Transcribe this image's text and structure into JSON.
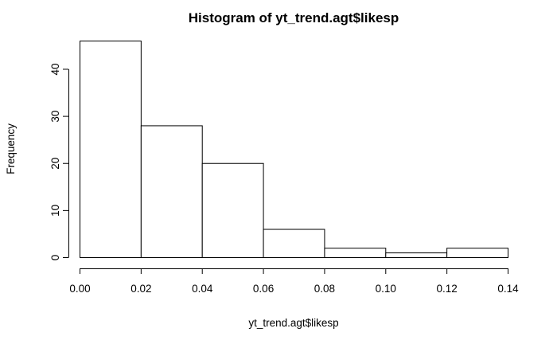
{
  "chart_data": {
    "type": "bar",
    "title": "Histogram of yt_trend.agt$likesp",
    "xlabel": "yt_trend.agt$likesp",
    "ylabel": "Frequency",
    "bins": [
      {
        "start": 0.0,
        "end": 0.02,
        "count": 46
      },
      {
        "start": 0.02,
        "end": 0.04,
        "count": 28
      },
      {
        "start": 0.04,
        "end": 0.06,
        "count": 20
      },
      {
        "start": 0.06,
        "end": 0.08,
        "count": 6
      },
      {
        "start": 0.08,
        "end": 0.1,
        "count": 2
      },
      {
        "start": 0.1,
        "end": 0.12,
        "count": 1
      },
      {
        "start": 0.12,
        "end": 0.14,
        "count": 2
      }
    ],
    "xlim": [
      0,
      0.14
    ],
    "ylim": [
      0,
      46
    ],
    "xticks": [
      "0.00",
      "0.02",
      "0.04",
      "0.06",
      "0.08",
      "0.10",
      "0.12",
      "0.14"
    ],
    "yticks": [
      "0",
      "10",
      "20",
      "30",
      "40"
    ],
    "grid": false,
    "colors": {
      "bar_fill": "#ffffff",
      "bar_stroke": "#000000"
    }
  }
}
